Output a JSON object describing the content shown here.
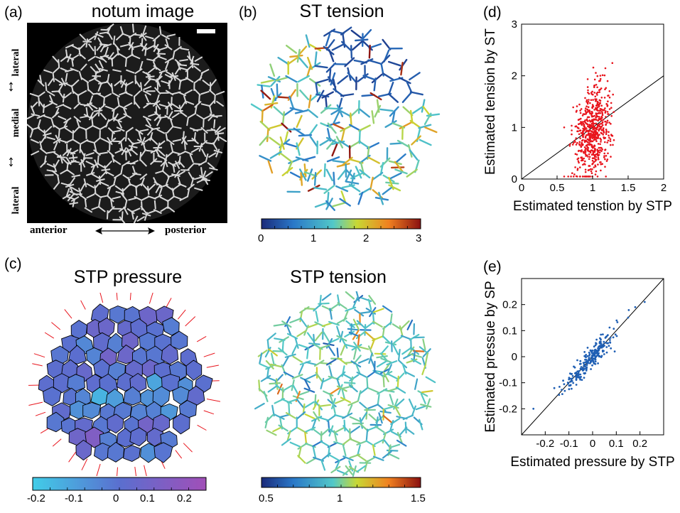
{
  "panels": {
    "a": {
      "letter": "(a)",
      "title": "notum image",
      "side_labels": [
        "lateral",
        "medial",
        "lateral"
      ],
      "bottom_left": "anterior",
      "bottom_right": "posterior"
    },
    "b": {
      "letter": "(b)",
      "title": "ST tension",
      "colorbar_ticks": [
        "0",
        "1",
        "2",
        "3"
      ]
    },
    "c": {
      "letter": "(c)",
      "title_left": "STP pressure",
      "title_right": "STP tension",
      "colorbar_left_ticks": [
        "-0.2",
        "-0.1",
        "0",
        "0.1",
        "0.2"
      ],
      "colorbar_right_ticks": [
        "0.5",
        "1",
        "1.5"
      ]
    },
    "d": {
      "letter": "(d)"
    },
    "e": {
      "letter": "(e)"
    }
  },
  "colors": {
    "scatter_d": "#e8141c",
    "scatter_e": "#1f5fb4",
    "pressure_edges": "#e8141c"
  },
  "chart_data": [
    {
      "panel": "d",
      "type": "scatter",
      "xlabel": "Estimated tenstion by STP",
      "ylabel": "Estimated tension by ST",
      "xlim": [
        0,
        2
      ],
      "ylim": [
        0,
        3
      ],
      "xticks": [
        "0",
        "0.5",
        "1",
        "1.5",
        "2"
      ],
      "yticks": [
        "0",
        "1",
        "2",
        "3"
      ],
      "reference_line": "y = x",
      "point_cloud": {
        "n": 620,
        "x_center": 1.0,
        "x_spread": 0.13,
        "y_center": 0.95,
        "y_spread": 0.42,
        "y_min": 0.05,
        "y_max": 2.95
      }
    },
    {
      "panel": "e",
      "type": "scatter",
      "xlabel": "Estimated pressure by STP",
      "ylabel": "Estimated pressue by SP",
      "xlim": [
        -0.3,
        0.3
      ],
      "ylim": [
        -0.3,
        0.3
      ],
      "xticks": [
        "-0.2",
        "-0.1",
        "0",
        "0.1",
        "0.2"
      ],
      "yticks": [
        "-0.2",
        "-0.1",
        "0",
        "0.1",
        "0.2"
      ],
      "reference_line": "y = x",
      "point_cloud": {
        "n": 240,
        "slope": 0.98,
        "x_center": -0.01,
        "x_spread": 0.055,
        "y_noise": 0.022,
        "extra_points": [
          [
            -0.25,
            -0.2
          ],
          [
            0.22,
            0.21
          ],
          [
            0.18,
            0.19
          ],
          [
            0.15,
            0.15
          ]
        ]
      }
    }
  ]
}
